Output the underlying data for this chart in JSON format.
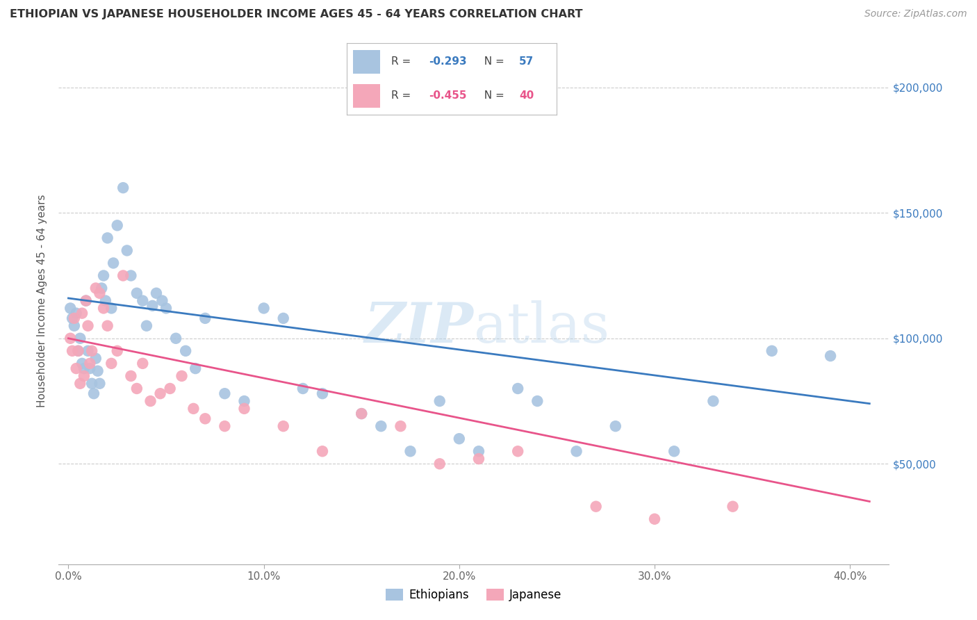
{
  "title": "ETHIOPIAN VS JAPANESE HOUSEHOLDER INCOME AGES 45 - 64 YEARS CORRELATION CHART",
  "source": "Source: ZipAtlas.com",
  "ylabel": "Householder Income Ages 45 - 64 years",
  "xlabel_ticks": [
    "0.0%",
    "10.0%",
    "20.0%",
    "30.0%",
    "40.0%"
  ],
  "xlabel_vals": [
    0.0,
    0.1,
    0.2,
    0.3,
    0.4
  ],
  "ylabel_ticks": [
    "$50,000",
    "$100,000",
    "$150,000",
    "$200,000"
  ],
  "ylabel_vals": [
    50000,
    100000,
    150000,
    200000
  ],
  "xlim": [
    -0.005,
    0.42
  ],
  "ylim": [
    10000,
    220000
  ],
  "ethiopian_color": "#a8c4e0",
  "japanese_color": "#f4a7b9",
  "trend_ethiopian_color": "#3a7abf",
  "trend_japanese_color": "#e8548a",
  "watermark_color": "#d0e8f5",
  "ethiopian_x": [
    0.001,
    0.002,
    0.003,
    0.004,
    0.005,
    0.006,
    0.007,
    0.008,
    0.009,
    0.01,
    0.011,
    0.012,
    0.013,
    0.014,
    0.015,
    0.016,
    0.017,
    0.018,
    0.019,
    0.02,
    0.022,
    0.023,
    0.025,
    0.028,
    0.03,
    0.032,
    0.035,
    0.038,
    0.04,
    0.043,
    0.045,
    0.048,
    0.05,
    0.055,
    0.06,
    0.065,
    0.07,
    0.08,
    0.09,
    0.1,
    0.11,
    0.12,
    0.13,
    0.15,
    0.16,
    0.175,
    0.19,
    0.2,
    0.21,
    0.23,
    0.24,
    0.26,
    0.28,
    0.31,
    0.33,
    0.36,
    0.39
  ],
  "ethiopian_y": [
    112000,
    108000,
    105000,
    110000,
    95000,
    100000,
    90000,
    88000,
    115000,
    95000,
    88000,
    82000,
    78000,
    92000,
    87000,
    82000,
    120000,
    125000,
    115000,
    140000,
    112000,
    130000,
    145000,
    160000,
    135000,
    125000,
    118000,
    115000,
    105000,
    113000,
    118000,
    115000,
    112000,
    100000,
    95000,
    88000,
    108000,
    78000,
    75000,
    112000,
    108000,
    80000,
    78000,
    70000,
    65000,
    55000,
    75000,
    60000,
    55000,
    80000,
    75000,
    55000,
    65000,
    55000,
    75000,
    95000,
    93000
  ],
  "japanese_x": [
    0.001,
    0.002,
    0.003,
    0.004,
    0.005,
    0.006,
    0.007,
    0.008,
    0.009,
    0.01,
    0.011,
    0.012,
    0.014,
    0.016,
    0.018,
    0.02,
    0.022,
    0.025,
    0.028,
    0.032,
    0.035,
    0.038,
    0.042,
    0.047,
    0.052,
    0.058,
    0.064,
    0.07,
    0.08,
    0.09,
    0.11,
    0.13,
    0.15,
    0.17,
    0.19,
    0.21,
    0.23,
    0.27,
    0.3,
    0.34
  ],
  "japanese_y": [
    100000,
    95000,
    108000,
    88000,
    95000,
    82000,
    110000,
    85000,
    115000,
    105000,
    90000,
    95000,
    120000,
    118000,
    112000,
    105000,
    90000,
    95000,
    125000,
    85000,
    80000,
    90000,
    75000,
    78000,
    80000,
    85000,
    72000,
    68000,
    65000,
    72000,
    65000,
    55000,
    70000,
    65000,
    50000,
    52000,
    55000,
    33000,
    28000,
    33000
  ],
  "trend_eth_x0": 0.0,
  "trend_eth_x1": 0.41,
  "trend_eth_y0": 116000,
  "trend_eth_y1": 74000,
  "trend_jap_x0": 0.0,
  "trend_jap_x1": 0.41,
  "trend_jap_y0": 100000,
  "trend_jap_y1": 35000
}
